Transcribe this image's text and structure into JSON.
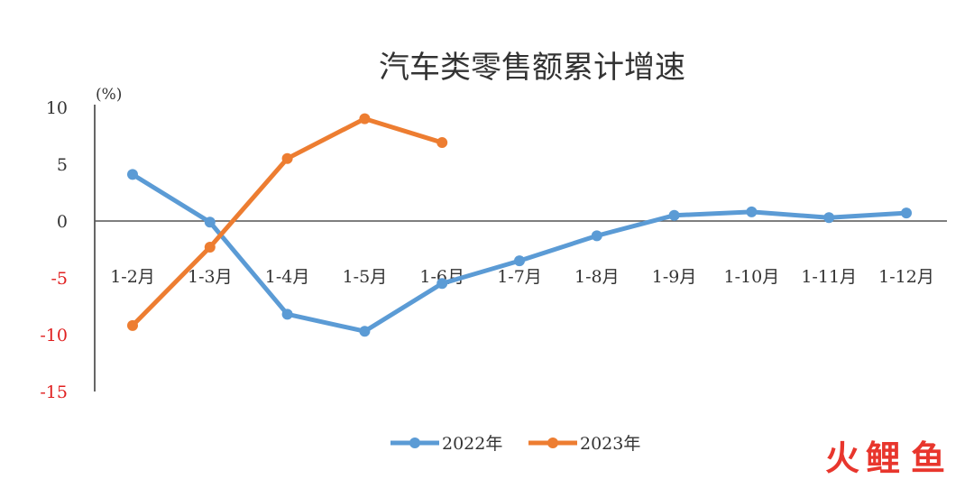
{
  "chart_data": {
    "type": "line",
    "title": "汽车类零售额累计增速",
    "unit_label": "(%)",
    "categories": [
      "1-2月",
      "1-3月",
      "1-4月",
      "1-5月",
      "1-6月",
      "1-7月",
      "1-8月",
      "1-9月",
      "1-10月",
      "1-11月",
      "1-12月"
    ],
    "yticks": [
      10,
      5,
      0,
      -5,
      -10,
      -15
    ],
    "ylim": [
      -15,
      10
    ],
    "series": [
      {
        "name": "2022年",
        "color": "#5b9bd5",
        "values": [
          4.1,
          -0.1,
          -8.2,
          -9.7,
          -5.5,
          -3.5,
          -1.3,
          0.5,
          0.8,
          0.3,
          0.7
        ]
      },
      {
        "name": "2023年",
        "color": "#ed7d31",
        "values": [
          -9.2,
          -2.3,
          5.5,
          9.0,
          6.9,
          null,
          null,
          null,
          null,
          null,
          null
        ]
      }
    ],
    "negative_tick_color": "#e02020",
    "legend_position": "bottom-center",
    "grid": false
  },
  "watermark": {
    "text": [
      "火",
      "鲤",
      "鱼"
    ],
    "colors": [
      "#e8362d",
      "#e8362d",
      "#e8362d"
    ]
  }
}
